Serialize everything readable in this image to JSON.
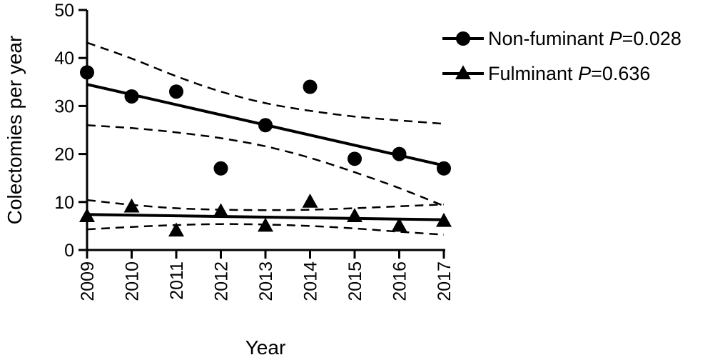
{
  "chart_data": {
    "type": "scatter",
    "xlabel": "Year",
    "ylabel": "Colectomies per year",
    "categories": [
      "2009",
      "2010",
      "2011",
      "2012",
      "2013",
      "2014",
      "2015",
      "2016",
      "2017"
    ],
    "ylim": [
      0,
      50
    ],
    "yticks": [
      "0",
      "10",
      "20",
      "30",
      "40",
      "50"
    ],
    "grid": false,
    "legend_position": "top-right",
    "series": [
      {
        "name": "Non-fuminant",
        "p_label": "P",
        "p_value": "=0.028",
        "marker": "circle",
        "values": [
          37,
          32,
          33,
          17,
          26,
          34,
          19,
          20,
          17
        ],
        "fit_line": [
          34.5,
          17.6
        ],
        "ci_upper": [
          43.2,
          39.9,
          36.2,
          33.0,
          30.6,
          29.0,
          27.8,
          27.0,
          26.3
        ],
        "ci_lower": [
          26.0,
          25.4,
          24.5,
          23.3,
          21.6,
          19.2,
          16.2,
          12.9,
          9.2
        ]
      },
      {
        "name": "Fulminant",
        "p_label": "P",
        "p_value": "=0.636",
        "marker": "triangle",
        "values": [
          7,
          9,
          4,
          8,
          5,
          10,
          7,
          5,
          6
        ],
        "fit_line": [
          7.4,
          6.3
        ],
        "ci_upper": [
          10.4,
          9.4,
          8.7,
          8.4,
          8.3,
          8.4,
          8.7,
          9.1,
          9.5
        ],
        "ci_lower": [
          4.3,
          4.8,
          5.2,
          5.4,
          5.3,
          5.0,
          4.5,
          3.8,
          3.2
        ]
      }
    ]
  }
}
